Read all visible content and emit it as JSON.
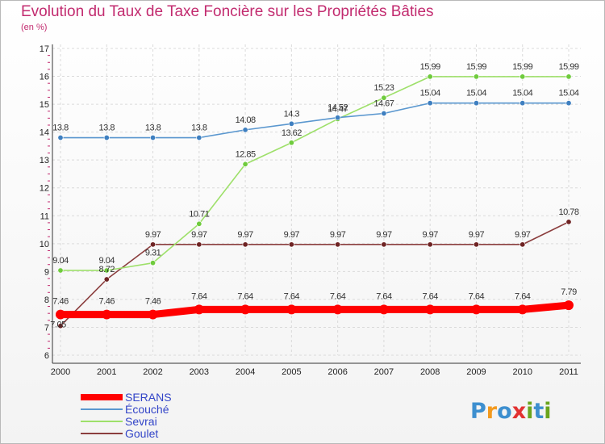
{
  "header": {
    "title": "Evolution du Taux de Taxe Foncière sur les Propriétés Bâties",
    "subtitle": "(en %)"
  },
  "logo": {
    "text": "Proxiti",
    "colors": [
      "#3d8fcf",
      "#f39a1e",
      "#3d8fcf",
      "#e23131",
      "#6aa51e",
      "#3d8fcf",
      "#6aa51e"
    ]
  },
  "chart_data": {
    "type": "line",
    "title": "Evolution du Taux de Taxe Foncière sur les Propriétés Bâties",
    "ylabel": "(en %)",
    "xlabel": "",
    "x": [
      "2000",
      "2001",
      "2002",
      "2003",
      "2004",
      "2005",
      "2006",
      "2007",
      "2008",
      "2009",
      "2010",
      "2011"
    ],
    "ylim": [
      6,
      17
    ],
    "yticks": [
      "6",
      "7",
      "8",
      "9",
      "10",
      "11",
      "12",
      "13",
      "14",
      "15",
      "16",
      "17"
    ],
    "grid": true,
    "legend": "bottom-left",
    "series": [
      {
        "name": "SERANS",
        "color": "#ff0000",
        "emphasis": true,
        "values": [
          7.46,
          7.46,
          7.46,
          7.64,
          7.64,
          7.64,
          7.64,
          7.64,
          7.64,
          7.64,
          7.64,
          7.79
        ],
        "labels": [
          "7.46",
          "7.46",
          "7.46",
          "7.64",
          "7.64",
          "7.64",
          "7.64",
          "7.64",
          "7.64",
          "7.64",
          "7.64",
          "7.79"
        ]
      },
      {
        "name": "Écouché",
        "color": "#5a97cf",
        "point": "#3e7fc0",
        "values": [
          13.8,
          13.8,
          13.8,
          13.8,
          14.08,
          14.3,
          14.52,
          14.67,
          15.04,
          15.04,
          15.04,
          15.04
        ],
        "labels": [
          "13.8",
          "13.8",
          "13.8",
          "13.8",
          "14.08",
          "14.3",
          "14.52",
          "14.67",
          "15.04",
          "15.04",
          "15.04",
          "15.04"
        ]
      },
      {
        "name": "Sevrai",
        "color": "#9ee06a",
        "point": "#6fcb3d",
        "values": [
          9.04,
          9.04,
          9.31,
          10.71,
          12.85,
          13.62,
          14.47,
          15.23,
          15.99,
          15.99,
          15.99,
          15.99
        ],
        "labels": [
          "9.04",
          "9.04",
          "9.31",
          "10.71",
          "12.85",
          "13.62",
          "14.47",
          "15.23",
          "15.99",
          "15.99",
          "15.99",
          "15.99"
        ]
      },
      {
        "name": "Goulet",
        "color": "#8b3e3e",
        "point": "#6e2323",
        "values": [
          7.05,
          8.72,
          9.97,
          9.97,
          9.97,
          9.97,
          9.97,
          9.97,
          9.97,
          9.97,
          9.97,
          10.78
        ],
        "labels": [
          "7.05",
          "8.72",
          "9.97",
          "9.97",
          "9.97",
          "9.97",
          "9.97",
          "9.97",
          "9.97",
          "9.97",
          "9.97",
          "10.78"
        ]
      }
    ]
  }
}
